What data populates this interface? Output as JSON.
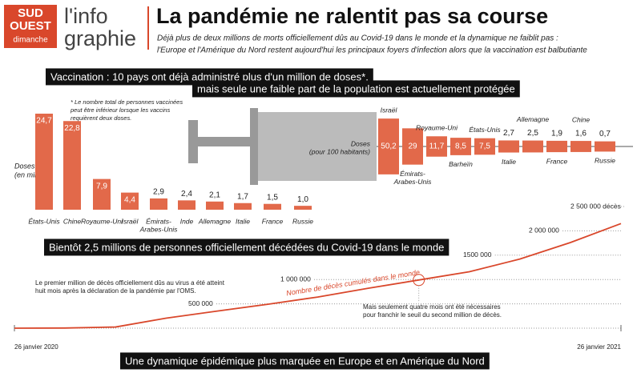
{
  "header": {
    "logo": [
      "SUD",
      "OUEST",
      "dimanche"
    ],
    "brand": [
      "l'info",
      "graphie"
    ],
    "title": "La pandémie ne ralentit pas sa course",
    "subtitle": [
      "Déjà plus de deux millions de morts officiellement dûs au Covid-19 dans le monde et la dynamique ne faiblit pas :",
      "l'Europe et l'Amérique du Nord restent aujourd'hui les principaux foyers d'infection alors que la vaccination est balbutiante"
    ]
  },
  "banners": {
    "vaccination": [
      "Vaccination : 10 pays ont déjà administré plus d'un million de doses*,",
      "mais seule une faible part de la population est actuellement protégée"
    ],
    "deaths": "Bientôt 2,5 millions de personnes officiellement décédées du Covid-19 dans le monde",
    "footer": "Une dynamique épidémique plus marquée en Europe et en Amérique du Nord"
  },
  "chart_data": [
    {
      "type": "bar",
      "y_label": [
        "Doses",
        "(en millions)"
      ],
      "note": [
        "* Le nombre total de personnes vaccinées",
        "peut être inférieur lorsque les vaccins",
        "requièrent deux doses."
      ],
      "categories": [
        "États-Unis",
        "Chine",
        "Royaume-Uni",
        "Israël",
        [
          "Émirats-",
          "Arabes-Unis"
        ],
        "Inde",
        "Allemagne",
        "Italie",
        "France",
        "Russie"
      ],
      "values": [
        24.7,
        22.8,
        7.9,
        4.4,
        2.9,
        2.4,
        2.1,
        1.7,
        1.5,
        1.0
      ],
      "value_labels": [
        "24,7",
        "22,8",
        "7,9",
        "4,4",
        "2,9",
        "2,4",
        "2,1",
        "1,7",
        "1,5",
        "1,0"
      ],
      "color": "#e2694a"
    },
    {
      "type": "syringe",
      "y_label": [
        "Doses",
        "(pour 100 habitants)"
      ],
      "categories": [
        "Israël",
        [
          "Émirats-",
          "Arabes-Unis"
        ],
        "Royaume-Uni",
        "Barheïn",
        "États-Unis",
        "Italie",
        "Allemagne",
        "France",
        "Chine",
        "Russie"
      ],
      "values": [
        50.2,
        29,
        11.7,
        8.5,
        7.5,
        2.7,
        2.5,
        1.9,
        1.6,
        0.7
      ],
      "value_labels": [
        "50,2",
        "29",
        "11,7",
        "8,5",
        "7,5",
        "2,7",
        "2,5",
        "1,9",
        "1,6",
        "0,7"
      ],
      "color": "#e2694a"
    },
    {
      "type": "line",
      "categories": [
        "26 janvier 2020",
        null,
        null,
        null,
        null,
        null,
        null,
        null,
        null,
        null,
        null,
        null,
        "26 janvier 2021"
      ],
      "series": [
        {
          "name": "Nombre de décès cumulés dans le monde",
          "color": "#d9472b",
          "values": [
            0,
            2800,
            24000,
            206000,
            350000,
            490000,
            640000,
            820000,
            990000,
            1160000,
            1420000,
            1760000,
            2150000
          ]
        }
      ],
      "ylim": [
        0,
        2500000
      ],
      "yticks": [
        {
          "value": 500000,
          "label": "500 000"
        },
        {
          "value": 1000000,
          "label": "1 000 000"
        },
        {
          "value": 1500000,
          "label": "1500 000"
        },
        {
          "value": 2000000,
          "label": "2 000 000"
        },
        {
          "value": 2500000,
          "label": "2 500 000 décès"
        }
      ],
      "annotations": [
        [
          "Le premier million de décès officiellement dûs au virus a été atteint",
          "huit mois après la déclaration de la pandémie par l'OMS."
        ],
        [
          "Mais seulement quatre mois ont été nécessaires",
          "pour franchir le seuil du second million de décès."
        ]
      ]
    }
  ]
}
